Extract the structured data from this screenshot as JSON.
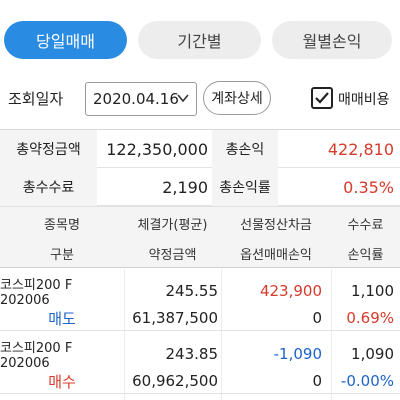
{
  "tabs": [
    {
      "label": "당일매매",
      "active": true
    },
    {
      "label": "기간별",
      "active": false
    },
    {
      "label": "월별손익",
      "active": false
    }
  ],
  "filter": {
    "label": "조회일자",
    "date": "2020.04.16",
    "account_button": "계좌상세",
    "fee_checkbox_label": "매매비용",
    "fee_checked": true
  },
  "summary": {
    "total_contract_label": "총약정금액",
    "total_contract_value": "122,350,000",
    "total_pnl_label": "총손익",
    "total_pnl_value": "422,810",
    "total_fee_label": "총수수료",
    "total_fee_value": "2,190",
    "total_pnl_rate_label": "총손익률",
    "total_pnl_rate_value": "0.35%"
  },
  "table": {
    "headers_row1": [
      "종목명",
      "체결가(평균)",
      "선물정산차금",
      "수수료"
    ],
    "headers_row2": [
      "구분",
      "약정금액",
      "옵션매매손익",
      "손익률"
    ],
    "rows": [
      {
        "name": "코스피200 F 202006",
        "side": "매도",
        "price": "245.55",
        "amount": "61,387,500",
        "futures_settlement": "423,900",
        "option_pnl": "0",
        "fee": "1,100",
        "rate": "0.69%"
      },
      {
        "name": "코스피200 F 202006",
        "side": "매수",
        "price": "243.85",
        "amount": "60,962,500",
        "futures_settlement": "-1,090",
        "option_pnl": "0",
        "fee": "1,090",
        "rate": "-0.00%"
      }
    ]
  },
  "colors": {
    "accent": "#2a8be3",
    "positive": "#d63a2b",
    "negative": "#1d63c9"
  }
}
